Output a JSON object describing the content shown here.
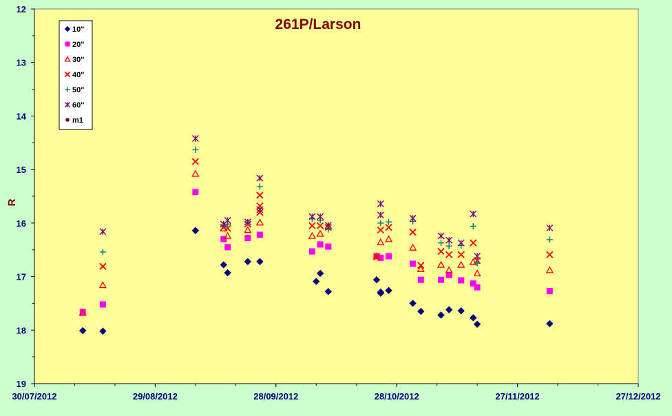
{
  "colors": {
    "page_bg": "#ccffcc",
    "plot_bg": "#ffff99",
    "title": "#800000",
    "axis_text": "#000080",
    "legend_bg": "#ffffff"
  },
  "chart_data": {
    "type": "scatter",
    "title": "261P/Larson",
    "xlabel": "",
    "ylabel": "R",
    "y_inverted": true,
    "ylim": [
      12,
      19
    ],
    "yticks": [
      "12",
      "13",
      "14",
      "15",
      "16",
      "17",
      "18",
      "19"
    ],
    "xlim": [
      "2012-07-30",
      "2012-12-27"
    ],
    "xticks": [
      "30/07/2012",
      "29/08/2012",
      "28/09/2012",
      "28/10/2012",
      "27/11/2012",
      "27/12/2012"
    ],
    "grid": false,
    "legend_position": "top-left",
    "series": [
      {
        "name": "10\"",
        "marker": "diamond",
        "color": "#000080",
        "points": [
          [
            "2012-08-11",
            18.01
          ],
          [
            "2012-08-16",
            18.02
          ],
          [
            "2012-09-08",
            16.14
          ],
          [
            "2012-09-15",
            16.78
          ],
          [
            "2012-09-16",
            16.93
          ],
          [
            "2012-09-21",
            16.72
          ],
          [
            "2012-09-24",
            16.72
          ],
          [
            "2012-10-08",
            17.09
          ],
          [
            "2012-10-09",
            16.94
          ],
          [
            "2012-10-11",
            17.28
          ],
          [
            "2012-10-23",
            17.06
          ],
          [
            "2012-10-24",
            17.29
          ],
          [
            "2012-10-24",
            17.31
          ],
          [
            "2012-10-26",
            17.26
          ],
          [
            "2012-11-01",
            17.5
          ],
          [
            "2012-11-03",
            17.65
          ],
          [
            "2012-11-08",
            17.72
          ],
          [
            "2012-11-10",
            17.62
          ],
          [
            "2012-11-13",
            17.64
          ],
          [
            "2012-11-16",
            17.77
          ],
          [
            "2012-11-17",
            17.89
          ],
          [
            "2012-12-05",
            17.88
          ]
        ]
      },
      {
        "name": "20\"",
        "marker": "square",
        "color": "#ff00ff",
        "points": [
          [
            "2012-08-11",
            17.66
          ],
          [
            "2012-08-16",
            17.52
          ],
          [
            "2012-09-08",
            15.42
          ],
          [
            "2012-09-15",
            16.3
          ],
          [
            "2012-09-16",
            16.45
          ],
          [
            "2012-09-21",
            16.28
          ],
          [
            "2012-09-24",
            16.22
          ],
          [
            "2012-10-07",
            16.53
          ],
          [
            "2012-10-09",
            16.4
          ],
          [
            "2012-10-11",
            16.44
          ],
          [
            "2012-10-23",
            16.62
          ],
          [
            "2012-10-24",
            16.65
          ],
          [
            "2012-10-26",
            16.62
          ],
          [
            "2012-11-01",
            16.76
          ],
          [
            "2012-11-03",
            17.06
          ],
          [
            "2012-11-08",
            17.06
          ],
          [
            "2012-11-10",
            16.97
          ],
          [
            "2012-11-13",
            17.07
          ],
          [
            "2012-11-16",
            17.13
          ],
          [
            "2012-11-17",
            17.2
          ],
          [
            "2012-12-05",
            17.27
          ]
        ]
      },
      {
        "name": "30\"",
        "marker": "triangle",
        "color": "#ff0000",
        "points": [
          [
            "2012-08-11",
            17.68
          ],
          [
            "2012-08-16",
            17.16
          ],
          [
            "2012-09-08",
            15.08
          ],
          [
            "2012-09-15",
            16.1
          ],
          [
            "2012-09-16",
            16.24
          ],
          [
            "2012-09-21",
            16.13
          ],
          [
            "2012-09-24",
            15.99
          ],
          [
            "2012-10-07",
            16.24
          ],
          [
            "2012-10-09",
            16.2
          ],
          [
            "2012-10-11",
            16.06
          ],
          [
            "2012-10-23",
            16.62
          ],
          [
            "2012-10-24",
            16.36
          ],
          [
            "2012-10-26",
            16.3
          ],
          [
            "2012-11-01",
            16.46
          ],
          [
            "2012-11-03",
            16.86
          ],
          [
            "2012-11-08",
            16.78
          ],
          [
            "2012-11-10",
            16.88
          ],
          [
            "2012-11-13",
            16.78
          ],
          [
            "2012-11-16",
            16.73
          ],
          [
            "2012-11-17",
            16.94
          ],
          [
            "2012-12-05",
            16.88
          ]
        ]
      },
      {
        "name": "40\"",
        "marker": "x",
        "color": "#ff0000",
        "points": [
          [
            "2012-08-16",
            16.81
          ],
          [
            "2012-09-08",
            14.85
          ],
          [
            "2012-09-15",
            16.08
          ],
          [
            "2012-09-16",
            16.1
          ],
          [
            "2012-09-21",
            16.02
          ],
          [
            "2012-09-24",
            15.48
          ],
          [
            "2012-09-24",
            15.68
          ],
          [
            "2012-09-24",
            15.8
          ],
          [
            "2012-10-07",
            16.05
          ],
          [
            "2012-10-09",
            16.05
          ],
          [
            "2012-10-11",
            16.08
          ],
          [
            "2012-10-23",
            16.63
          ],
          [
            "2012-10-24",
            16.13
          ],
          [
            "2012-10-26",
            16.08
          ],
          [
            "2012-11-01",
            16.17
          ],
          [
            "2012-11-03",
            16.79
          ],
          [
            "2012-11-08",
            16.53
          ],
          [
            "2012-11-10",
            16.59
          ],
          [
            "2012-11-13",
            16.59
          ],
          [
            "2012-11-16",
            16.37
          ],
          [
            "2012-11-17",
            16.7
          ],
          [
            "2012-12-05",
            16.59
          ]
        ]
      },
      {
        "name": "50\"",
        "marker": "plus",
        "color": "#008080",
        "points": [
          [
            "2012-08-16",
            16.54
          ],
          [
            "2012-09-08",
            14.63
          ],
          [
            "2012-09-15",
            16.05
          ],
          [
            "2012-09-16",
            16.02
          ],
          [
            "2012-09-21",
            15.99
          ],
          [
            "2012-09-24",
            15.32
          ],
          [
            "2012-10-07",
            15.92
          ],
          [
            "2012-10-09",
            15.95
          ],
          [
            "2012-10-11",
            16.12
          ],
          [
            "2012-10-24",
            16.0
          ],
          [
            "2012-10-26",
            15.98
          ],
          [
            "2012-11-01",
            15.97
          ],
          [
            "2012-11-08",
            16.37
          ],
          [
            "2012-11-10",
            16.43
          ],
          [
            "2012-11-13",
            16.42
          ],
          [
            "2012-11-16",
            16.06
          ],
          [
            "2012-11-17",
            16.75
          ],
          [
            "2012-12-05",
            16.31
          ]
        ]
      },
      {
        "name": "60\"",
        "marker": "star",
        "color": "#800080",
        "points": [
          [
            "2012-08-16",
            16.16
          ],
          [
            "2012-09-08",
            14.42
          ],
          [
            "2012-09-15",
            16.02
          ],
          [
            "2012-09-16",
            15.95
          ],
          [
            "2012-09-21",
            15.98
          ],
          [
            "2012-09-24",
            15.16
          ],
          [
            "2012-09-24",
            15.75
          ],
          [
            "2012-10-07",
            15.88
          ],
          [
            "2012-10-09",
            15.88
          ],
          [
            "2012-10-11",
            16.04
          ],
          [
            "2012-10-24",
            15.64
          ],
          [
            "2012-10-24",
            15.85
          ],
          [
            "2012-11-01",
            15.91
          ],
          [
            "2012-11-08",
            16.24
          ],
          [
            "2012-11-10",
            16.32
          ],
          [
            "2012-11-13",
            16.37
          ],
          [
            "2012-11-16",
            15.83
          ],
          [
            "2012-11-17",
            16.62
          ],
          [
            "2012-12-05",
            16.09
          ]
        ]
      },
      {
        "name": "m1",
        "marker": "circle",
        "color": "#800000",
        "points": []
      }
    ]
  }
}
